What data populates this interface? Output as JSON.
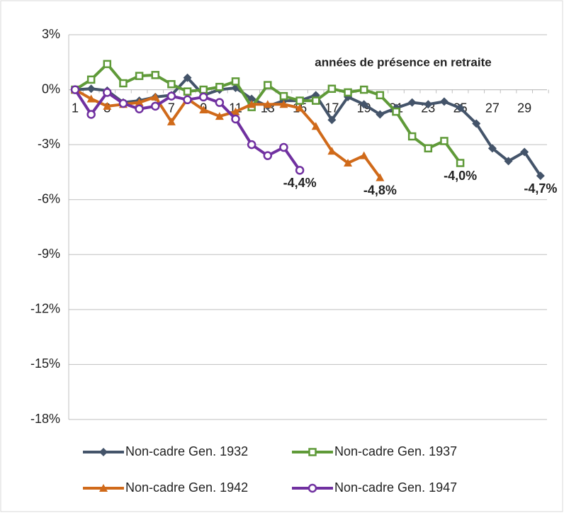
{
  "chart_data": {
    "type": "line",
    "title": "années de présence en retraite",
    "categories": [
      "1",
      null,
      "3",
      null,
      "5",
      null,
      "7",
      null,
      "9",
      null,
      "11",
      null,
      "13",
      null,
      "15",
      null,
      "17",
      null,
      "19",
      null,
      "21",
      null,
      "23",
      null,
      "25",
      null,
      "27",
      null,
      "29",
      null
    ],
    "ylim": [
      -18,
      3
    ],
    "yticks": [
      {
        "value": 3,
        "label": "3%"
      },
      {
        "value": 0,
        "label": "0%"
      },
      {
        "value": -3,
        "label": "-3%"
      },
      {
        "value": -6,
        "label": "-6%"
      },
      {
        "value": -9,
        "label": "-9%"
      },
      {
        "value": -12,
        "label": "-12%"
      },
      {
        "value": -15,
        "label": "-15%"
      },
      {
        "value": -18,
        "label": "-18%"
      }
    ],
    "grid": true,
    "series": [
      {
        "name": "Non-cadre Gen. 1932",
        "color": "#44546a",
        "marker": "diamond",
        "values": [
          0,
          0.05,
          -0.05,
          -0.7,
          -0.6,
          -0.4,
          -0.3,
          0.65,
          -0.3,
          0,
          0.1,
          -0.5,
          -0.9,
          -0.6,
          -0.6,
          -0.3,
          -1.65,
          -0.4,
          -0.8,
          -1.35,
          -1.0,
          -0.7,
          -0.8,
          -0.65,
          -1.0,
          -1.85,
          -3.2,
          -3.9,
          -3.4,
          -4.7
        ],
        "end_label": "-4,7%"
      },
      {
        "name": "Non-cadre Gen. 1937",
        "color": "#5f9a38",
        "marker": "square",
        "values": [
          0,
          0.55,
          1.4,
          0.35,
          0.75,
          0.8,
          0.3,
          -0.1,
          0,
          0.15,
          0.45,
          -0.95,
          0.25,
          -0.35,
          -0.6,
          -0.6,
          0.05,
          -0.15,
          0,
          -0.3,
          -1.2,
          -2.55,
          -3.2,
          -2.8,
          -4.0,
          null,
          null,
          null,
          null,
          null
        ],
        "end_label": "-4,0%"
      },
      {
        "name": "Non-cadre Gen. 1942",
        "color": "#d06a1a",
        "marker": "triangle",
        "values": [
          0,
          -0.5,
          -0.9,
          -0.8,
          -0.7,
          -0.4,
          -1.75,
          -0.5,
          -1.1,
          -1.45,
          -1.2,
          -0.8,
          -0.8,
          -0.8,
          -1.0,
          -2.0,
          -3.35,
          -4.0,
          -3.6,
          -4.8,
          null,
          null,
          null,
          null,
          null,
          null,
          null,
          null,
          null,
          null
        ],
        "end_label": "-4,8%"
      },
      {
        "name": "Non-cadre Gen. 1947",
        "color": "#7030a0",
        "marker": "circle",
        "values": [
          0,
          -1.35,
          -0.15,
          -0.75,
          -1.05,
          -0.9,
          -0.35,
          -0.55,
          -0.4,
          -0.7,
          -1.6,
          -3.0,
          -3.6,
          -3.15,
          -4.4,
          null,
          null,
          null,
          null,
          null,
          null,
          null,
          null,
          null,
          null,
          null,
          null,
          null,
          null,
          null
        ],
        "end_label": "-4,4%"
      }
    ]
  }
}
